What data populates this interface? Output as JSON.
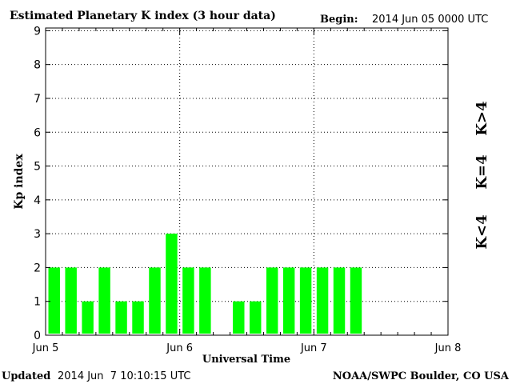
{
  "chart_data": {
    "type": "bar",
    "title": "Estimated Planetary K index (3 hour data)",
    "begin_label": "Begin:",
    "begin_value": "2014 Jun 05 0000 UTC",
    "xlabel": "Universal Time",
    "ylabel": "Kp index",
    "ylim": [
      0,
      9
    ],
    "yticks": [
      "0",
      "1",
      "2",
      "3",
      "4",
      "5",
      "6",
      "7",
      "8",
      "9"
    ],
    "xlim_days": [
      0,
      3
    ],
    "xticks": [
      {
        "label": "Jun 5",
        "day": 0
      },
      {
        "label": "Jun 6",
        "day": 1
      },
      {
        "label": "Jun 7",
        "day": 2
      },
      {
        "label": "Jun 8",
        "day": 3
      }
    ],
    "grid": true,
    "interval_hours": 3,
    "values": [
      2,
      2,
      1,
      2,
      1,
      1,
      2,
      3,
      2,
      2,
      null,
      1,
      1,
      2,
      2,
      2,
      2,
      2,
      2
    ],
    "colors": {
      "below": "#00ff00",
      "equal": "#ffd700",
      "above": "#ff3300"
    },
    "legend": [
      {
        "label": "K<4",
        "color": "#33dd33"
      },
      {
        "label": "K=4",
        "color": "#ffcc00"
      },
      {
        "label": "K>4",
        "color": "#ee3322"
      }
    ]
  },
  "footer": {
    "updated_label": "Updated",
    "updated_value": "2014 Jun  7 10:10:15 UTC",
    "source": "NOAA/SWPC Boulder, CO USA"
  }
}
